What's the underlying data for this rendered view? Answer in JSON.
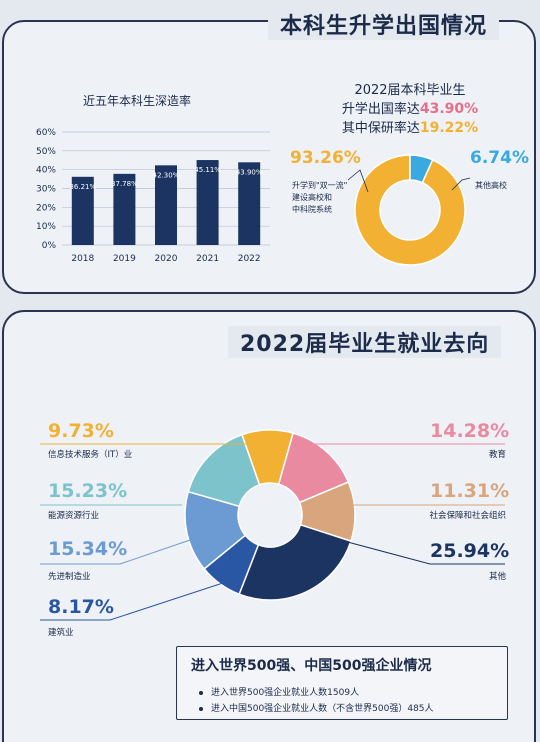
{
  "section1": {
    "title": "本科生升学出国情况",
    "bar_title": "近五年本科生深造率",
    "rate_line1": "2022届本科毕业生",
    "rate_line2_prefix": "升学出国率达",
    "rate_line2_value": "43.90%",
    "rate_line3_prefix": "其中保研率达",
    "rate_line3_value": "19.22%",
    "donut_left_pct": "93.26%",
    "donut_left_label1": "升学到\"双一流\"",
    "donut_left_label2": "建设高校和",
    "donut_left_label3": "中科院系统",
    "donut_right_pct": "6.74%",
    "donut_right_label": "其他高校"
  },
  "section2": {
    "title": "2022届毕业生就业去向",
    "labels": {
      "it_pct": "9.73%",
      "it_name": "信息技术服务（IT）业",
      "energy_pct": "15.23%",
      "energy_name": "能源资源行业",
      "manu_pct": "15.34%",
      "manu_name": "先进制造业",
      "build_pct": "8.17%",
      "build_name": "建筑业",
      "edu_pct": "14.28%",
      "edu_name": "教育",
      "social_pct": "11.31%",
      "social_name": "社会保障和社会组织",
      "other_pct": "25.94%",
      "other_name": "其他"
    },
    "box": {
      "title": "进入世界500强、中国500强企业情况",
      "item1": "进入世界500强企业就业人数1509人",
      "item2": "进入中国500强企业就业人数（不含世界500强）485人"
    }
  },
  "colors": {
    "navy": "#1c3461",
    "yellow": "#f2b133",
    "pink": "#e98aa0",
    "tan": "#d8a57c",
    "teal": "#7cc3cc",
    "lightblue": "#6b9bd2",
    "blue": "#2a57a3",
    "cyan": "#3aa9e0"
  },
  "chart_data": [
    {
      "type": "bar",
      "title": "近五年本科生深造率",
      "categories": [
        "2018",
        "2019",
        "2020",
        "2021",
        "2022"
      ],
      "values": [
        36.21,
        37.78,
        42.3,
        45.11,
        43.9
      ],
      "value_labels": [
        "36.21%",
        "37.78%",
        "42.30%",
        "45.11%",
        "43.90%"
      ],
      "ylim": [
        0,
        60
      ],
      "yticks": [
        "0%",
        "10%",
        "20%",
        "30%",
        "40%",
        "50%",
        "60%"
      ],
      "grid": true
    },
    {
      "type": "pie",
      "donut": true,
      "values": [
        93.26,
        6.74
      ],
      "labels": [
        "升学到\"双一流\"建设高校和中科院系统",
        "其他高校"
      ]
    },
    {
      "type": "pie",
      "donut": true,
      "labels": [
        "信息技术服务（IT）业",
        "教育",
        "社会保障和社会组织",
        "其他",
        "建筑业",
        "先进制造业",
        "能源资源行业"
      ],
      "values": [
        9.73,
        14.28,
        11.31,
        25.94,
        8.17,
        15.34,
        15.23
      ]
    }
  ]
}
